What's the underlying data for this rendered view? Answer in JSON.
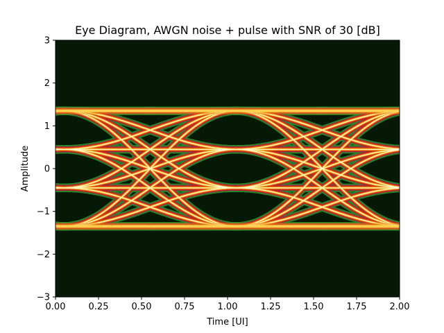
{
  "chart_data": {
    "type": "heatmap",
    "title": "Eye Diagram, AWGN noise + pulse with SNR of 30 [dB]",
    "xlabel": "Time [UI]",
    "ylabel": "Amplitude",
    "xlim": [
      0,
      2
    ],
    "ylim": [
      -3,
      3
    ],
    "xticks": [
      "0.00",
      "0.25",
      "0.50",
      "0.75",
      "1.00",
      "1.25",
      "1.50",
      "1.75",
      "2.00"
    ],
    "yticks": [
      "3",
      "2",
      "1",
      "0",
      "−1",
      "−2",
      "−3"
    ],
    "levels": [
      -1.35,
      -0.45,
      0.45,
      1.35
    ],
    "eye_centers_ui": [
      0.55,
      1.55
    ],
    "crossing_ui": [
      0.05,
      1.05
    ],
    "background_color": "#061806",
    "colormap": [
      "#2a8a2a",
      "#b02040",
      "#d03a10",
      "#ee8a10",
      "#ffd850",
      "#fff8d8"
    ]
  }
}
